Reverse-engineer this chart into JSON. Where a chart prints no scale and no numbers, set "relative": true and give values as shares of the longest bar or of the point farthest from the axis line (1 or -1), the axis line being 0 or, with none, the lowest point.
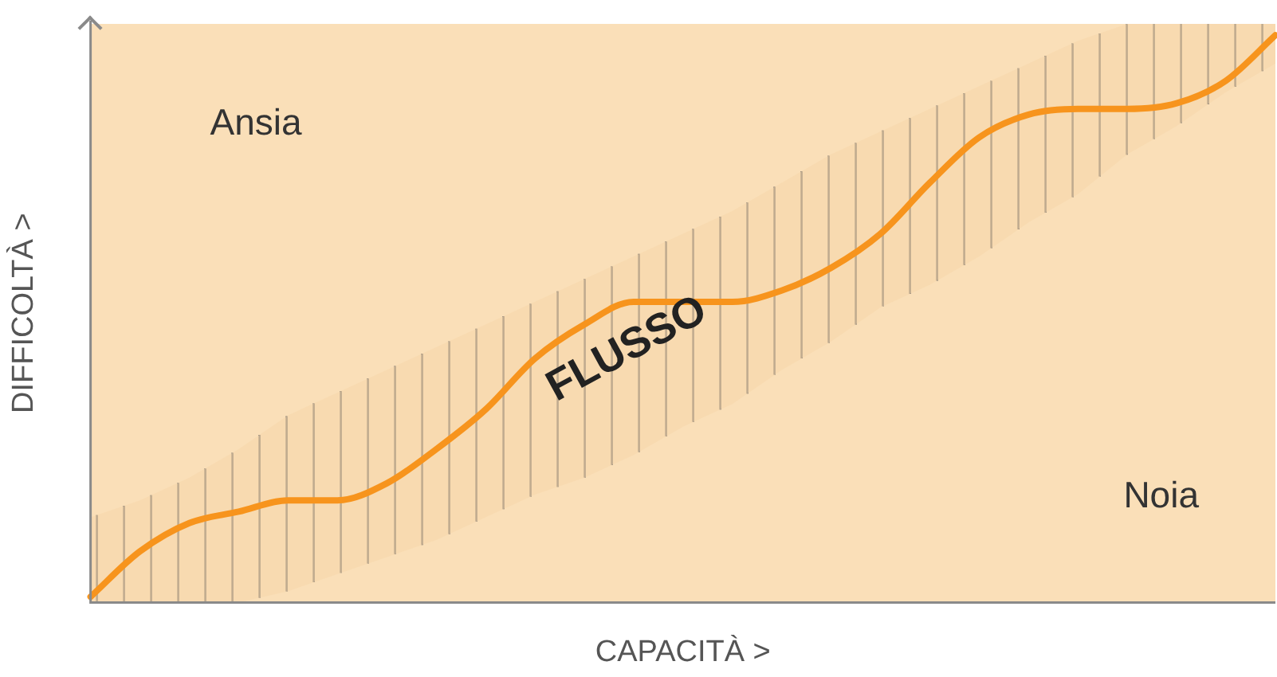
{
  "chart_data": {
    "type": "line",
    "relative": true,
    "xlabel": "CAPACITÀ >",
    "ylabel": "DIFFICOLTÀ >",
    "grid": false,
    "legend": false,
    "marker": "none",
    "line_style": "solid",
    "annotations": [
      "Ansia",
      "Noia"
    ],
    "categories": [
      null,
      null,
      null,
      null,
      null,
      null,
      null,
      null,
      null,
      null,
      null,
      null,
      null,
      null,
      null,
      null,
      null,
      null,
      null,
      null,
      null,
      null,
      null,
      null,
      null
    ],
    "series": [
      {
        "name": "FLUSSO",
        "color": "#f7941d",
        "values": [
          0.01,
          0.09,
          0.14,
          0.16,
          0.18,
          0.18,
          0.21,
          0.27,
          0.34,
          0.43,
          0.49,
          0.53,
          0.53,
          0.53,
          0.55,
          0.59,
          0.65,
          0.74,
          0.82,
          0.86,
          0.87,
          0.87,
          0.88,
          0.92,
          1
        ],
        "lower": [
          0,
          0,
          0,
          0,
          0.02,
          0.05,
          0.08,
          0.11,
          0.15,
          0.19,
          0.22,
          0.26,
          0.31,
          0.35,
          0.41,
          0.46,
          0.52,
          0.56,
          0.61,
          0.67,
          0.72,
          0.79,
          0.84,
          0.9,
          0.95
        ],
        "upper": [
          0.15,
          0.18,
          0.22,
          0.27,
          0.33,
          0.37,
          0.41,
          0.45,
          0.49,
          0.53,
          0.57,
          0.61,
          0.65,
          0.69,
          0.74,
          0.79,
          0.83,
          0.87,
          0.91,
          0.95,
          0.99,
          1.02,
          1.02,
          1.02,
          1.02
        ]
      }
    ]
  }
}
